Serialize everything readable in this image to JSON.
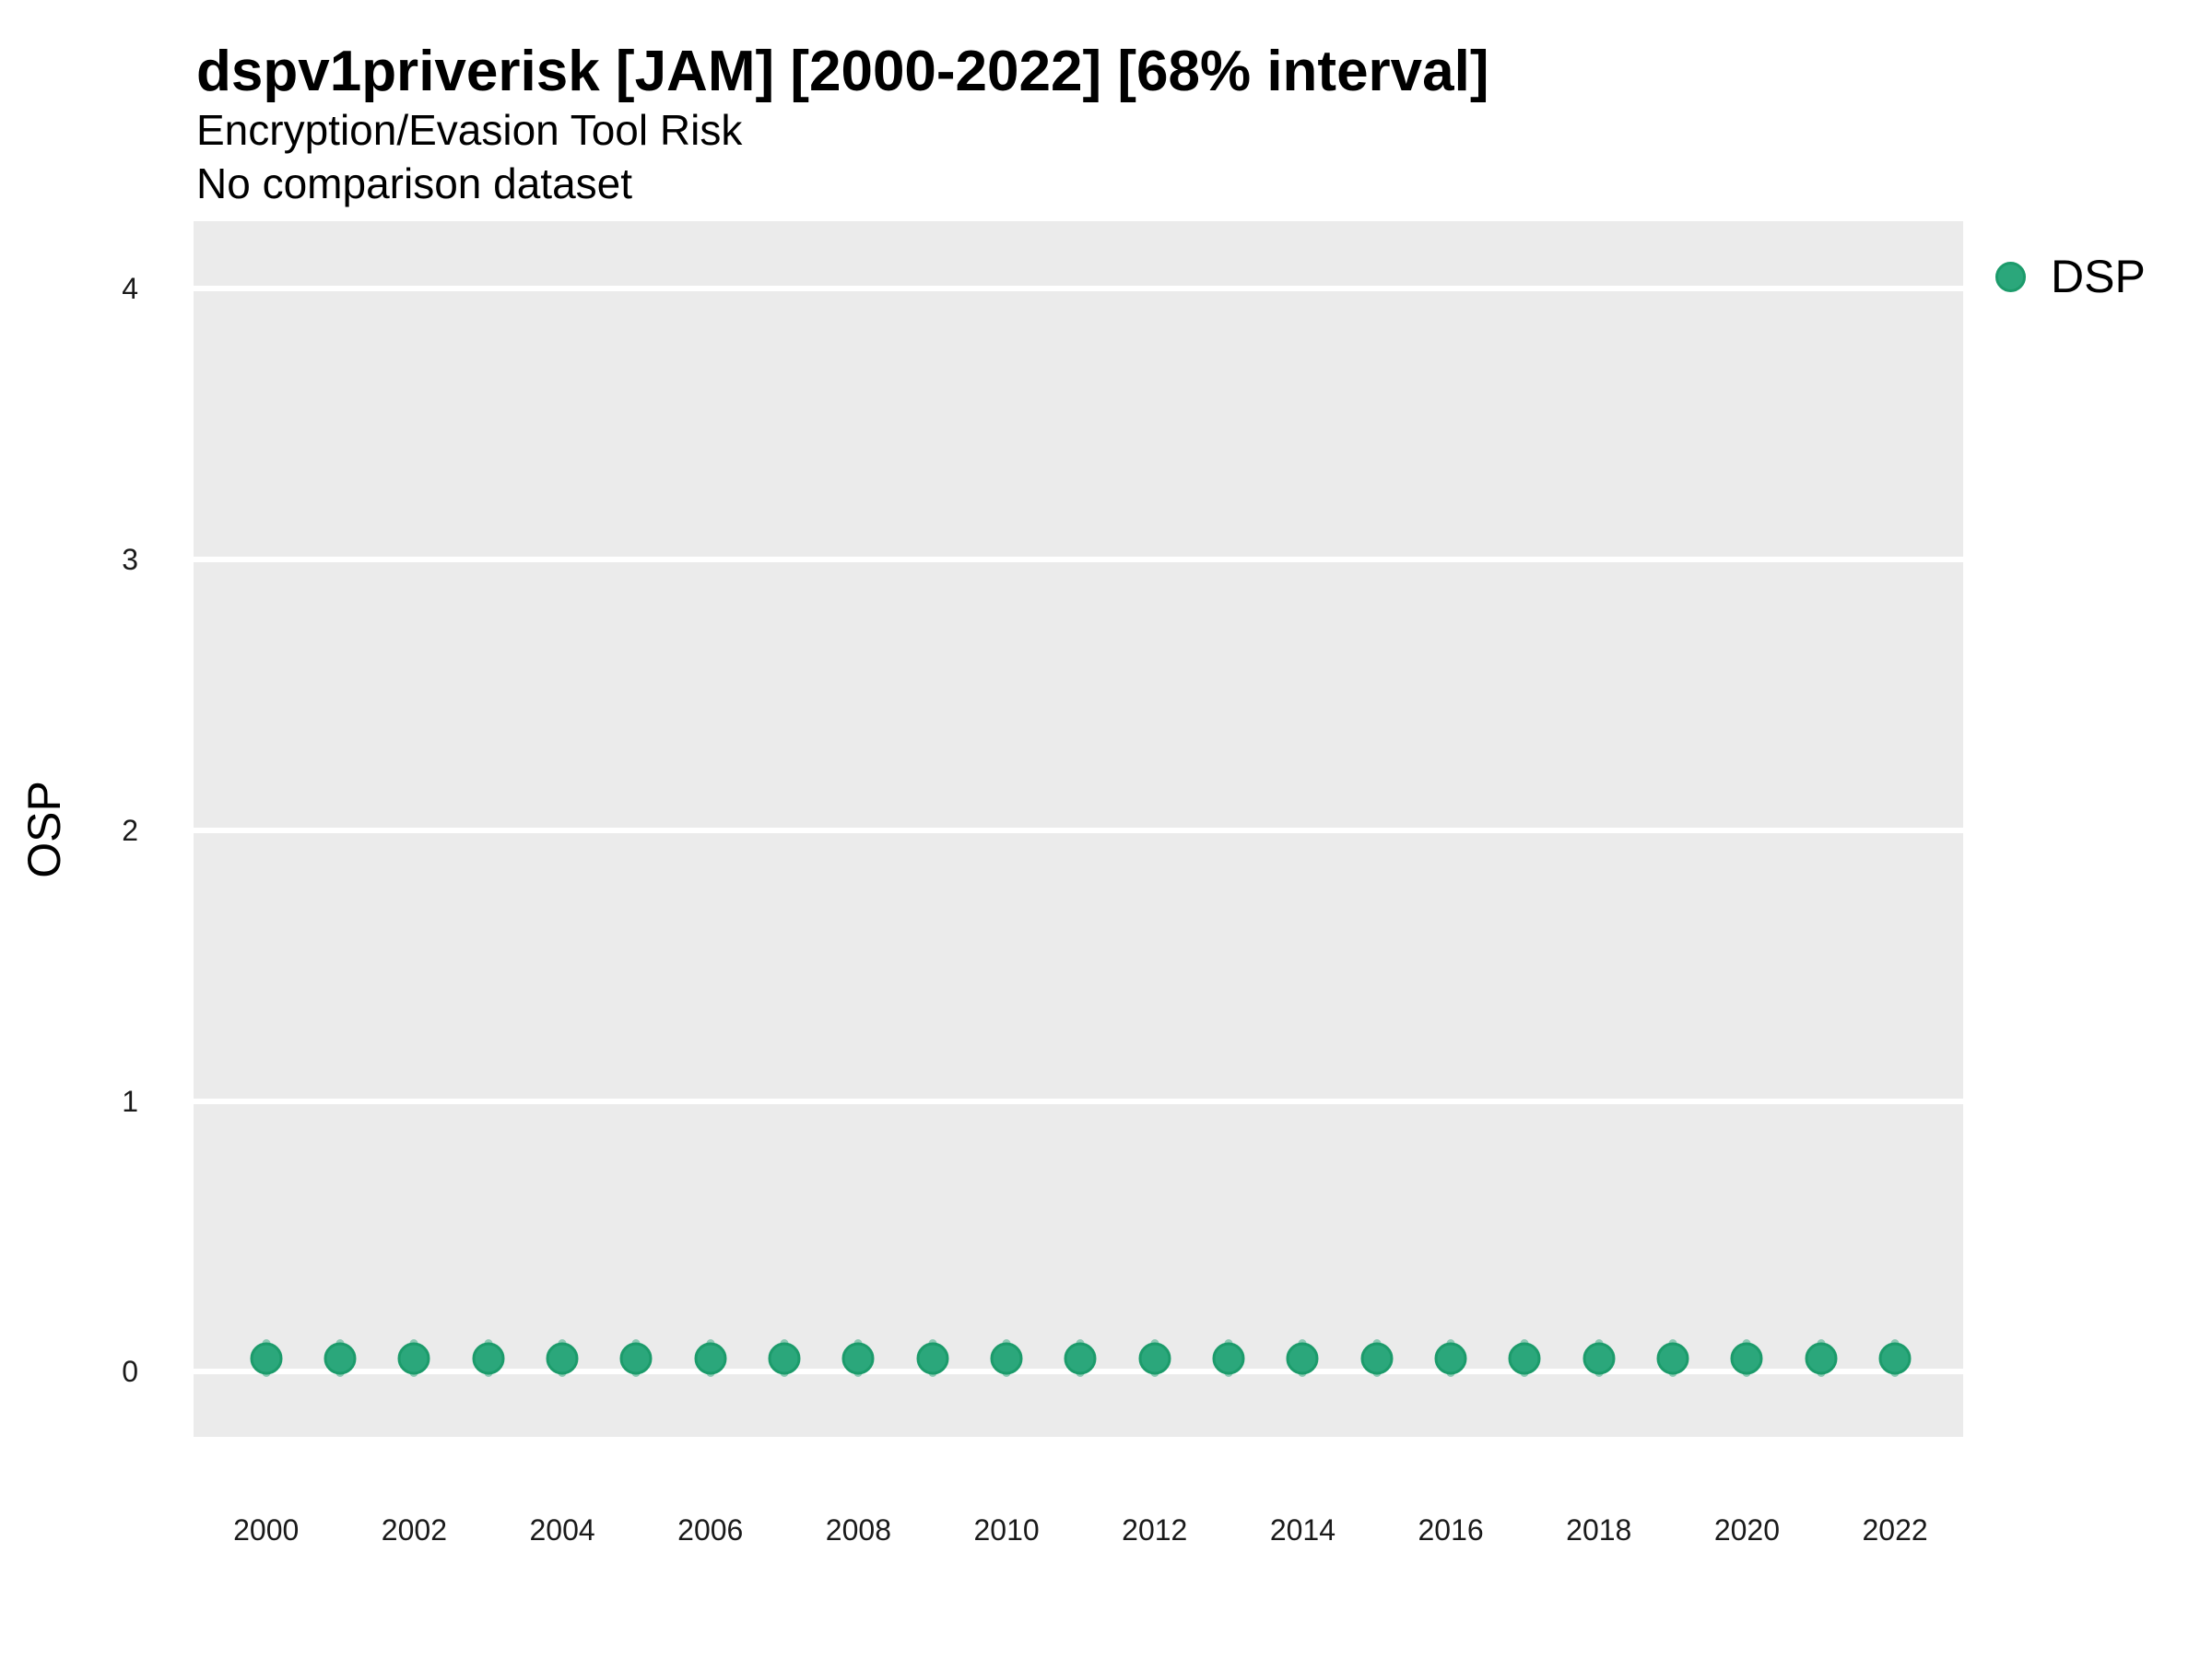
{
  "header": {
    "title": "dspv1priverisk [JAM] [2000-2022] [68% interval]",
    "subtitle": "Encryption/Evasion Tool Risk",
    "note": "No comparison dataset"
  },
  "legend": {
    "position": "right-top",
    "items": [
      {
        "label": "DSP",
        "marker": "circle",
        "color": "#2BA77B"
      }
    ]
  },
  "colors": {
    "point_fill": "#2BA77B",
    "point_stroke": "#1C9B6B",
    "interval_line": "rgba(43,167,123,0.5)",
    "panel_bg": "#EBEBEB",
    "gridline": "#FFFFFF",
    "text": "#000000"
  },
  "chart_data": {
    "type": "scatter",
    "title": "dspv1priverisk [JAM] [2000-2022] [68% interval]",
    "subtitle": "Encryption/Evasion Tool Risk",
    "note": "No comparison dataset",
    "xlabel": "",
    "ylabel": "OSP",
    "interval_level": "68%",
    "grid": "horizontal major gridlines only, white on gray panel",
    "legend_position": "right-top",
    "xlim": [
      1999.02,
      2022.92
    ],
    "ylim": [
      -0.24,
      4.25
    ],
    "xticks": [
      2000,
      2002,
      2004,
      2006,
      2008,
      2010,
      2012,
      2014,
      2016,
      2018,
      2020,
      2022
    ],
    "yticks": [
      0,
      1,
      2,
      3,
      4
    ],
    "series": [
      {
        "name": "DSP",
        "color": "#2BA77B",
        "x": [
          2000,
          2001,
          2002,
          2003,
          2004,
          2005,
          2006,
          2007,
          2008,
          2009,
          2010,
          2011,
          2012,
          2013,
          2014,
          2015,
          2016,
          2017,
          2018,
          2019,
          2020,
          2021,
          2022
        ],
        "y": [
          0.05,
          0.05,
          0.05,
          0.05,
          0.05,
          0.05,
          0.05,
          0.05,
          0.05,
          0.05,
          0.05,
          0.05,
          0.05,
          0.05,
          0.05,
          0.05,
          0.05,
          0.05,
          0.05,
          0.05,
          0.05,
          0.05,
          0.05
        ],
        "interval_low": [
          -0.02,
          -0.02,
          -0.02,
          -0.02,
          -0.02,
          -0.02,
          -0.02,
          -0.02,
          -0.02,
          -0.02,
          -0.02,
          -0.02,
          -0.02,
          -0.02,
          -0.02,
          -0.02,
          -0.02,
          -0.02,
          -0.02,
          -0.02,
          -0.02,
          -0.02,
          -0.02
        ],
        "interval_high": [
          0.12,
          0.12,
          0.12,
          0.12,
          0.12,
          0.12,
          0.12,
          0.12,
          0.12,
          0.12,
          0.12,
          0.12,
          0.12,
          0.12,
          0.12,
          0.12,
          0.12,
          0.12,
          0.12,
          0.12,
          0.12,
          0.12,
          0.12
        ]
      }
    ]
  }
}
